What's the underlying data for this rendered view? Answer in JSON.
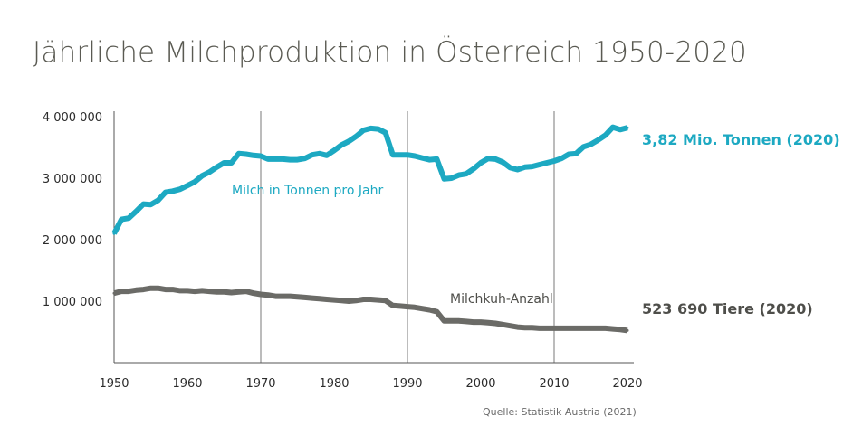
{
  "title": "Jährliche Milchproduktion in Österreich 1950-2020",
  "source": "Quelle: Statistik Austria (2021)",
  "colors": {
    "milk": "#1da9c2",
    "cows": "#6b6b67",
    "axis": "#555555",
    "grid": "#7a7a7a",
    "title": "#5a5a52"
  },
  "chart_data": {
    "type": "line",
    "title": "Jährliche Milchproduktion in Österreich 1950-2020",
    "xlim": [
      1950,
      2021
    ],
    "ylim": [
      0,
      4000000
    ],
    "x_ticks": [
      1950,
      1960,
      1970,
      1980,
      1990,
      2000,
      2010,
      2020
    ],
    "x_tick_labels": [
      "1950",
      "1960",
      "1970",
      "1980",
      "1990",
      "2000",
      "2010",
      "2020"
    ],
    "y_ticks": [
      1000000,
      2000000,
      3000000,
      4000000
    ],
    "y_tick_labels": [
      "1 000 000",
      "2 000 000",
      "3 000 000",
      "4 000 000"
    ],
    "vertical_gridlines": [
      1970,
      1990,
      2010
    ],
    "grid": "vertical only",
    "series": [
      {
        "name": "Milch in Tonnen pro Jahr",
        "color": "#1da9c2",
        "end_label": "3,82 Mio. Tonnen (2020)",
        "points": [
          [
            1950,
            2100000
          ],
          [
            1951,
            2330000
          ],
          [
            1952,
            2350000
          ],
          [
            1953,
            2460000
          ],
          [
            1954,
            2580000
          ],
          [
            1955,
            2570000
          ],
          [
            1956,
            2640000
          ],
          [
            1957,
            2770000
          ],
          [
            1958,
            2790000
          ],
          [
            1959,
            2820000
          ],
          [
            1960,
            2880000
          ],
          [
            1961,
            2940000
          ],
          [
            1962,
            3040000
          ],
          [
            1963,
            3100000
          ],
          [
            1964,
            3180000
          ],
          [
            1965,
            3250000
          ],
          [
            1966,
            3250000
          ],
          [
            1967,
            3400000
          ],
          [
            1968,
            3390000
          ],
          [
            1969,
            3370000
          ],
          [
            1970,
            3360000
          ],
          [
            1971,
            3310000
          ],
          [
            1972,
            3310000
          ],
          [
            1973,
            3310000
          ],
          [
            1974,
            3300000
          ],
          [
            1975,
            3300000
          ],
          [
            1976,
            3320000
          ],
          [
            1977,
            3380000
          ],
          [
            1978,
            3400000
          ],
          [
            1979,
            3370000
          ],
          [
            1980,
            3450000
          ],
          [
            1981,
            3540000
          ],
          [
            1982,
            3600000
          ],
          [
            1983,
            3680000
          ],
          [
            1984,
            3780000
          ],
          [
            1985,
            3810000
          ],
          [
            1986,
            3800000
          ],
          [
            1987,
            3740000
          ],
          [
            1988,
            3380000
          ],
          [
            1989,
            3380000
          ],
          [
            1990,
            3380000
          ],
          [
            1991,
            3360000
          ],
          [
            1992,
            3330000
          ],
          [
            1993,
            3300000
          ],
          [
            1994,
            3310000
          ],
          [
            1995,
            2990000
          ],
          [
            1996,
            3000000
          ],
          [
            1997,
            3050000
          ],
          [
            1998,
            3070000
          ],
          [
            1999,
            3150000
          ],
          [
            2000,
            3250000
          ],
          [
            2001,
            3320000
          ],
          [
            2002,
            3310000
          ],
          [
            2003,
            3260000
          ],
          [
            2004,
            3170000
          ],
          [
            2005,
            3140000
          ],
          [
            2006,
            3180000
          ],
          [
            2007,
            3190000
          ],
          [
            2008,
            3220000
          ],
          [
            2009,
            3250000
          ],
          [
            2010,
            3280000
          ],
          [
            2011,
            3320000
          ],
          [
            2012,
            3390000
          ],
          [
            2013,
            3400000
          ],
          [
            2014,
            3510000
          ],
          [
            2015,
            3550000
          ],
          [
            2016,
            3620000
          ],
          [
            2017,
            3700000
          ],
          [
            2018,
            3830000
          ],
          [
            2019,
            3790000
          ],
          [
            2020,
            3820000
          ]
        ]
      },
      {
        "name": "Milchkuh-Anzahl",
        "color": "#6b6b67",
        "end_label": "523 690 Tiere (2020)",
        "points": [
          [
            1950,
            1130000
          ],
          [
            1951,
            1160000
          ],
          [
            1952,
            1160000
          ],
          [
            1953,
            1180000
          ],
          [
            1954,
            1190000
          ],
          [
            1955,
            1210000
          ],
          [
            1956,
            1210000
          ],
          [
            1957,
            1190000
          ],
          [
            1958,
            1190000
          ],
          [
            1959,
            1170000
          ],
          [
            1960,
            1170000
          ],
          [
            1961,
            1160000
          ],
          [
            1962,
            1170000
          ],
          [
            1963,
            1160000
          ],
          [
            1964,
            1150000
          ],
          [
            1965,
            1150000
          ],
          [
            1966,
            1140000
          ],
          [
            1967,
            1150000
          ],
          [
            1968,
            1160000
          ],
          [
            1969,
            1130000
          ],
          [
            1970,
            1110000
          ],
          [
            1971,
            1100000
          ],
          [
            1972,
            1080000
          ],
          [
            1973,
            1080000
          ],
          [
            1974,
            1080000
          ],
          [
            1975,
            1070000
          ],
          [
            1976,
            1060000
          ],
          [
            1977,
            1050000
          ],
          [
            1978,
            1040000
          ],
          [
            1979,
            1030000
          ],
          [
            1980,
            1020000
          ],
          [
            1981,
            1010000
          ],
          [
            1982,
            1000000
          ],
          [
            1983,
            1010000
          ],
          [
            1984,
            1030000
          ],
          [
            1985,
            1030000
          ],
          [
            1986,
            1020000
          ],
          [
            1987,
            1010000
          ],
          [
            1988,
            930000
          ],
          [
            1989,
            920000
          ],
          [
            1990,
            910000
          ],
          [
            1991,
            900000
          ],
          [
            1992,
            880000
          ],
          [
            1993,
            860000
          ],
          [
            1994,
            830000
          ],
          [
            1995,
            680000
          ],
          [
            1996,
            680000
          ],
          [
            1997,
            680000
          ],
          [
            1998,
            670000
          ],
          [
            1999,
            660000
          ],
          [
            2000,
            660000
          ],
          [
            2001,
            650000
          ],
          [
            2002,
            640000
          ],
          [
            2003,
            620000
          ],
          [
            2004,
            600000
          ],
          [
            2005,
            580000
          ],
          [
            2006,
            570000
          ],
          [
            2007,
            570000
          ],
          [
            2008,
            560000
          ],
          [
            2009,
            560000
          ],
          [
            2010,
            560000
          ],
          [
            2011,
            560000
          ],
          [
            2012,
            560000
          ],
          [
            2013,
            560000
          ],
          [
            2014,
            560000
          ],
          [
            2015,
            560000
          ],
          [
            2016,
            560000
          ],
          [
            2017,
            560000
          ],
          [
            2018,
            550000
          ],
          [
            2019,
            540000
          ],
          [
            2020,
            523690
          ]
        ]
      }
    ]
  }
}
